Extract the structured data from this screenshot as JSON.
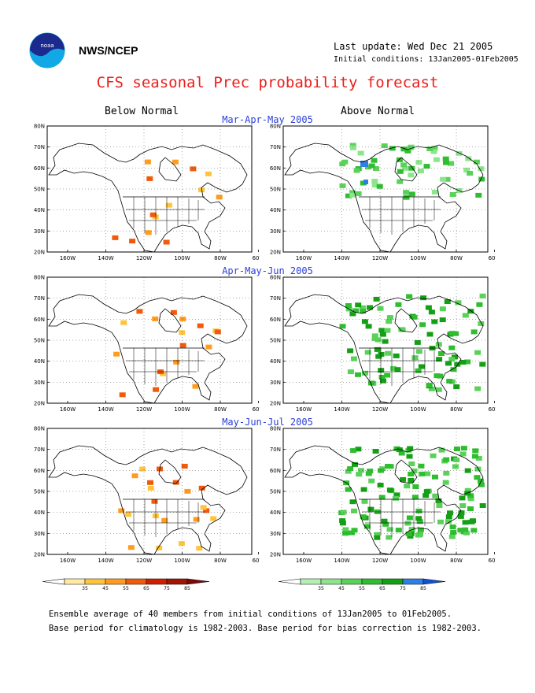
{
  "header": {
    "org": "NWS/NCEP",
    "last_update": "Last update: Wed Dec 21 2005",
    "initial_conditions": "Initial conditions: 13Jan2005-01Feb2005",
    "title": "CFS seasonal Prec probability forecast"
  },
  "columns": {
    "below": "Below Normal",
    "above": "Above Normal"
  },
  "panels": [
    {
      "period": "Mar-Apr-May 2005"
    },
    {
      "period": "Apr-May-Jun 2005"
    },
    {
      "period": "May-Jun-Jul 2005"
    }
  ],
  "axes": {
    "lat_labels": [
      "80N",
      "70N",
      "60N",
      "50N",
      "40N",
      "30N",
      "20N"
    ],
    "lon_labels": [
      "160W",
      "140W",
      "120W",
      "100W",
      "80W",
      "60W"
    ]
  },
  "legends": {
    "below": {
      "ticks": [
        "35",
        "45",
        "55",
        "65",
        "75",
        "85"
      ],
      "colors": [
        "#ffeaa0",
        "#ffc43a",
        "#ff9c1e",
        "#f05a0a",
        "#d21e00",
        "#a51400",
        "#7a0a0a"
      ]
    },
    "above": {
      "ticks": [
        "35",
        "45",
        "55",
        "65",
        "75",
        "85"
      ],
      "colors": [
        "#b4f0b4",
        "#8be68b",
        "#5ad25a",
        "#2fbe2f",
        "#14a014",
        "#2e7fe6",
        "#1450d2"
      ]
    }
  },
  "footer": {
    "line1": "Ensemble average of 40 members from initial conditions of 13Jan2005 to 01Feb2005.",
    "line2": "Base period for climatology is 1982-2003. Base period for bias correction is 1982-2003."
  }
}
